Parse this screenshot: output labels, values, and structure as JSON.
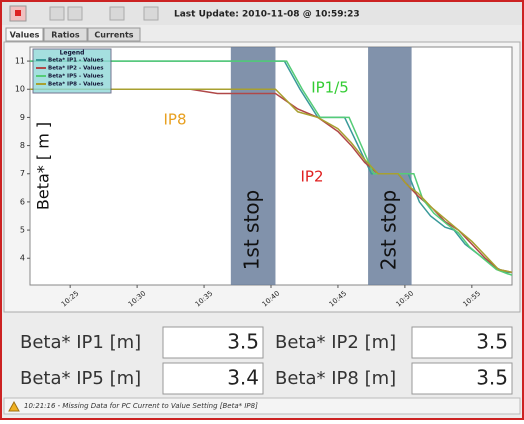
{
  "toolbar": {
    "last_update": "Last Update: 2010-11-08 @ 10:59:23"
  },
  "tabs": [
    "Values",
    "Ratios",
    "Currents"
  ],
  "chart_data": {
    "type": "line",
    "ylabel": "Beta* [ m ]",
    "legend_title": "Legend",
    "legend": "upper left",
    "xlim": [
      "10:22",
      "10:58"
    ],
    "xticks": [
      "10:25",
      "10:30",
      "10:35",
      "10:40",
      "10:45",
      "10:50",
      "10:55"
    ],
    "ylim": [
      3.05,
      11.5
    ],
    "yticks": [
      4,
      5,
      6,
      7,
      8,
      9,
      10,
      11
    ],
    "regions": [
      {
        "label": "1st stop",
        "x": [
          "10:37",
          "10:40:20"
        ],
        "color": "#6b7f9c"
      },
      {
        "label": "2st stop",
        "x": [
          "10:47:15",
          "10:50:30"
        ],
        "color": "#6b7f9c"
      }
    ],
    "annotations": [
      {
        "text": "IP8",
        "color": "#e8a020"
      },
      {
        "text": "IP1/5",
        "color": "#33cc33"
      },
      {
        "text": "IP2",
        "color": "#e02020"
      }
    ],
    "series": [
      {
        "name": "Beta* IP1 - Values",
        "color": "#3a9a9a",
        "x": [
          "10:22",
          "10:41",
          "10:42:10",
          "10:43:30",
          "10:45:30",
          "10:47:30",
          "10:50:15",
          "10:51:05",
          "10:51:55",
          "10:53",
          "10:53:40",
          "10:54:30",
          "10:55:35",
          "10:56:40",
          "10:57:30",
          "10:58"
        ],
        "values": [
          11,
          11,
          10,
          9,
          9,
          7,
          7,
          6,
          5.5,
          5.1,
          5,
          4.5,
          4.1,
          3.7,
          3.5,
          3.5
        ]
      },
      {
        "name": "Beta* IP2 - Values",
        "color": "#b04848",
        "x": [
          "10:22",
          "10:34",
          "10:36",
          "10:40:20",
          "10:42",
          "10:43:30",
          "10:45",
          "10:46",
          "10:47",
          "10:48",
          "10:49:30",
          "10:50",
          "10:51",
          "10:52",
          "10:53",
          "10:54",
          "10:55",
          "10:56",
          "10:57",
          "10:58"
        ],
        "values": [
          10,
          10,
          9.85,
          9.85,
          9.3,
          9,
          8.5,
          8,
          7.4,
          7,
          7,
          6.7,
          6.2,
          5.8,
          5.3,
          5,
          4.5,
          4,
          3.6,
          3.5
        ]
      },
      {
        "name": "Beta* IP5 - Values",
        "color": "#55cc77",
        "x": [
          "10:22",
          "10:41:10",
          "10:42:20",
          "10:43:40",
          "10:45:50",
          "10:47:40",
          "10:50:40",
          "10:51:20",
          "10:52:10",
          "10:53:10",
          "10:54",
          "10:54:50",
          "10:55:50",
          "10:56:50",
          "10:57:40",
          "10:58"
        ],
        "values": [
          11,
          11,
          10,
          9,
          9,
          7,
          7,
          6.1,
          5.6,
          5.2,
          4.9,
          4.4,
          4,
          3.6,
          3.45,
          3.4
        ]
      },
      {
        "name": "Beta* IP8 - Values",
        "color": "#a8a030",
        "x": [
          "10:22",
          "10:40:20",
          "10:42",
          "10:43:30",
          "10:45",
          "10:46",
          "10:47",
          "10:48",
          "10:49:30",
          "10:50:10",
          "10:51",
          "10:52",
          "10:53",
          "10:54",
          "10:55",
          "10:56",
          "10:57",
          "10:58"
        ],
        "values": [
          10,
          10,
          9.2,
          9,
          8.6,
          8.1,
          7.5,
          7,
          7,
          6.6,
          6.3,
          5.8,
          5.4,
          5,
          4.6,
          4.1,
          3.6,
          3.5
        ]
      }
    ]
  },
  "fields": [
    {
      "label": "Beta* IP1 [m]",
      "value": 3.5
    },
    {
      "label": "Beta* IP2 [m]",
      "value": 3.5
    },
    {
      "label": "Beta* IP5 [m]",
      "value": 3.4
    },
    {
      "label": "Beta* IP8 [m]",
      "value": 3.5
    }
  ],
  "status": "10:21:16 - Missing Data for PC Current to Value Setting [Beta* IP8]"
}
